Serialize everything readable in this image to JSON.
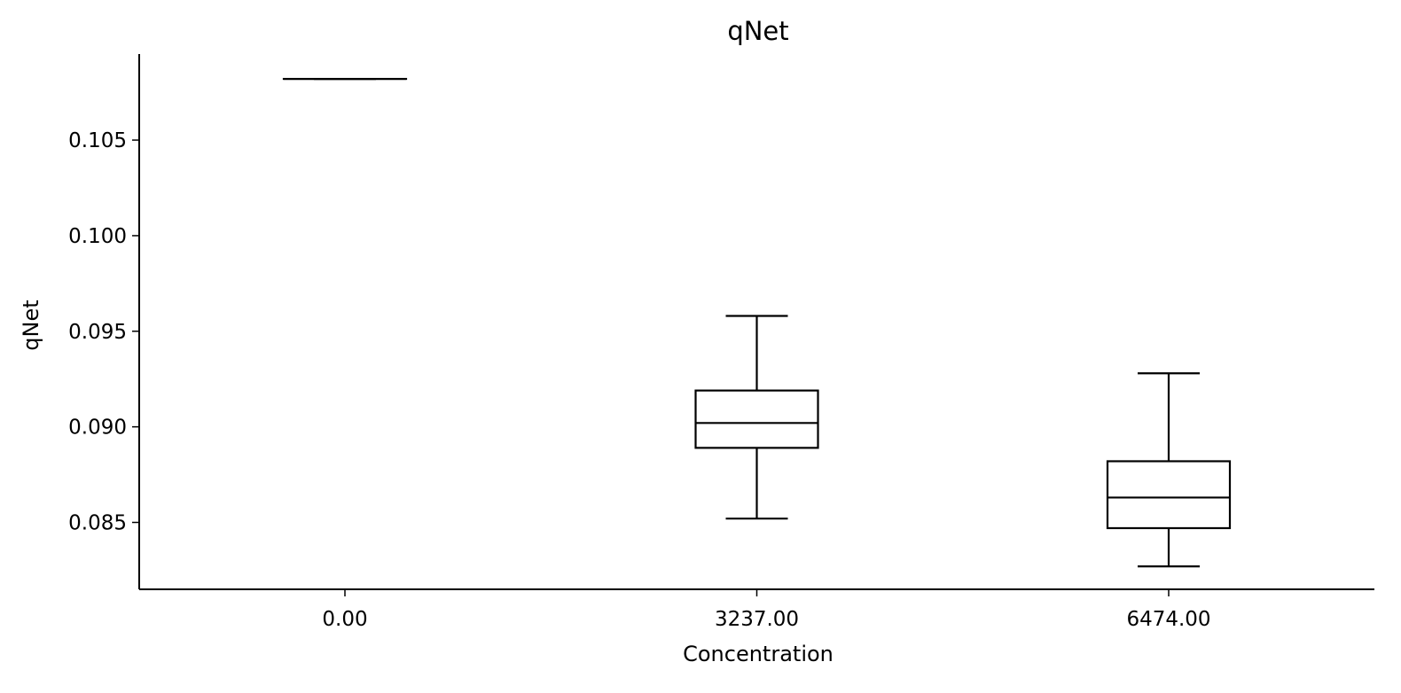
{
  "chart_data": {
    "type": "box",
    "title": "qNet",
    "xlabel": "Concentration",
    "ylabel": "qNet",
    "categories": [
      "0.00",
      "3237.00",
      "6474.00"
    ],
    "ylim": [
      0.0815,
      0.1095
    ],
    "yticks": [
      0.085,
      0.09,
      0.095,
      0.1,
      0.105
    ],
    "ytick_labels": [
      "0.085",
      "0.090",
      "0.095",
      "0.100",
      "0.105"
    ],
    "boxes": [
      {
        "category": "0.00",
        "whisker_low": 0.1082,
        "q1": 0.1082,
        "median": 0.1082,
        "q3": 0.1082,
        "whisker_high": 0.1082
      },
      {
        "category": "3237.00",
        "whisker_low": 0.0852,
        "q1": 0.0889,
        "median": 0.0902,
        "q3": 0.0919,
        "whisker_high": 0.0958
      },
      {
        "category": "6474.00",
        "whisker_low": 0.0827,
        "q1": 0.0847,
        "median": 0.0863,
        "q3": 0.0882,
        "whisker_high": 0.0928
      }
    ],
    "grid": false,
    "colors": {
      "stroke": "#000000",
      "background": "#ffffff"
    }
  }
}
